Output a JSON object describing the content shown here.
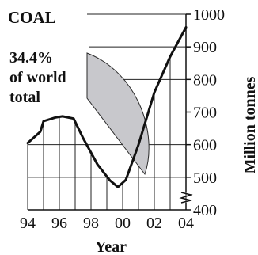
{
  "chart_data": {
    "type": "line",
    "title": "COAL",
    "annotation": {
      "line1": "34.4%",
      "line2": "of world",
      "line3": "total"
    },
    "xlabel": "Year",
    "ylabel": "Million tonnes",
    "x_ticks": [
      "94",
      "96",
      "98",
      "00",
      "02",
      "04"
    ],
    "y_ticks": [
      "400",
      "500",
      "600",
      "700",
      "800",
      "900",
      "1000"
    ],
    "ylim": [
      400,
      1000
    ],
    "xlim": [
      1994,
      2004
    ],
    "y_axis_broken": true,
    "grid": true,
    "series": [
      {
        "values": [
          {
            "x": 1994.0,
            "y": 605
          },
          {
            "x": 1994.8,
            "y": 640
          },
          {
            "x": 1995.0,
            "y": 672
          },
          {
            "x": 1995.8,
            "y": 684
          },
          {
            "x": 1996.2,
            "y": 687
          },
          {
            "x": 1996.9,
            "y": 680
          },
          {
            "x": 1997.5,
            "y": 620
          },
          {
            "x": 1998.4,
            "y": 540
          },
          {
            "x": 1999.2,
            "y": 490
          },
          {
            "x": 1999.7,
            "y": 470
          },
          {
            "x": 2000.2,
            "y": 492
          },
          {
            "x": 2001.0,
            "y": 600
          },
          {
            "x": 2002.0,
            "y": 760
          },
          {
            "x": 2003.0,
            "y": 870
          },
          {
            "x": 2004.0,
            "y": 960
          }
        ]
      }
    ],
    "colors": {
      "line": "#111111",
      "grid": "#222222",
      "pie_fill": "#c8c8cc",
      "pie_stroke": "#2a2a2a"
    }
  }
}
